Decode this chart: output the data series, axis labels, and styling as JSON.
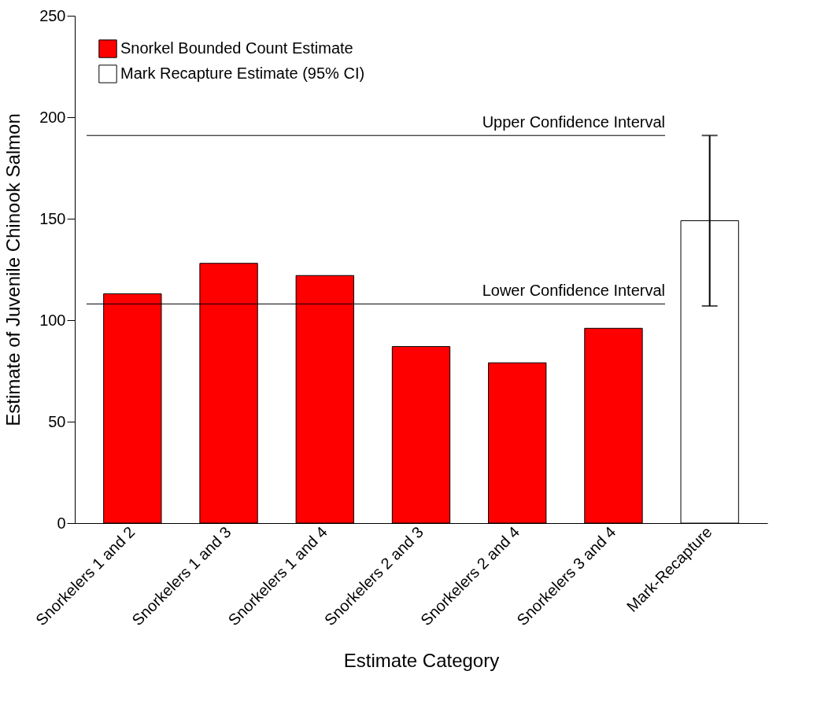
{
  "chart_data": {
    "type": "bar",
    "xlabel": "Estimate Category",
    "ylabel": "Estimate of Juvenile Chinook Salmon",
    "categories": [
      "Snorkelers 1 and 2",
      "Snorkelers 1 and 3",
      "Snorkelers 1 and 4",
      "Snorkelers 2 and 3",
      "Snorkelers 2 and 4",
      "Snorkelers 3 and 4",
      "Mark-Recapture"
    ],
    "series": [
      {
        "name": "Snorkel Bounded Count Estimate",
        "color": "#ff0000",
        "values": [
          113,
          128,
          122,
          87,
          79,
          96,
          null
        ]
      },
      {
        "name": "Mark Recapture Estimate (95% CI)",
        "color": "#ffffff",
        "values": [
          null,
          null,
          null,
          null,
          null,
          null,
          149
        ],
        "errors": [
          null,
          null,
          null,
          null,
          null,
          null,
          [
            107,
            191
          ]
        ]
      }
    ],
    "ref_lines": [
      {
        "axis": "y",
        "value": 191,
        "label": "Upper Confidence Interval"
      },
      {
        "axis": "y",
        "value": 108,
        "label": "Lower Confidence Interval"
      }
    ],
    "ylim": [
      0,
      250
    ],
    "yticks": [
      0,
      50,
      100,
      150,
      200,
      250
    ],
    "grid": false,
    "legend": "top left"
  }
}
